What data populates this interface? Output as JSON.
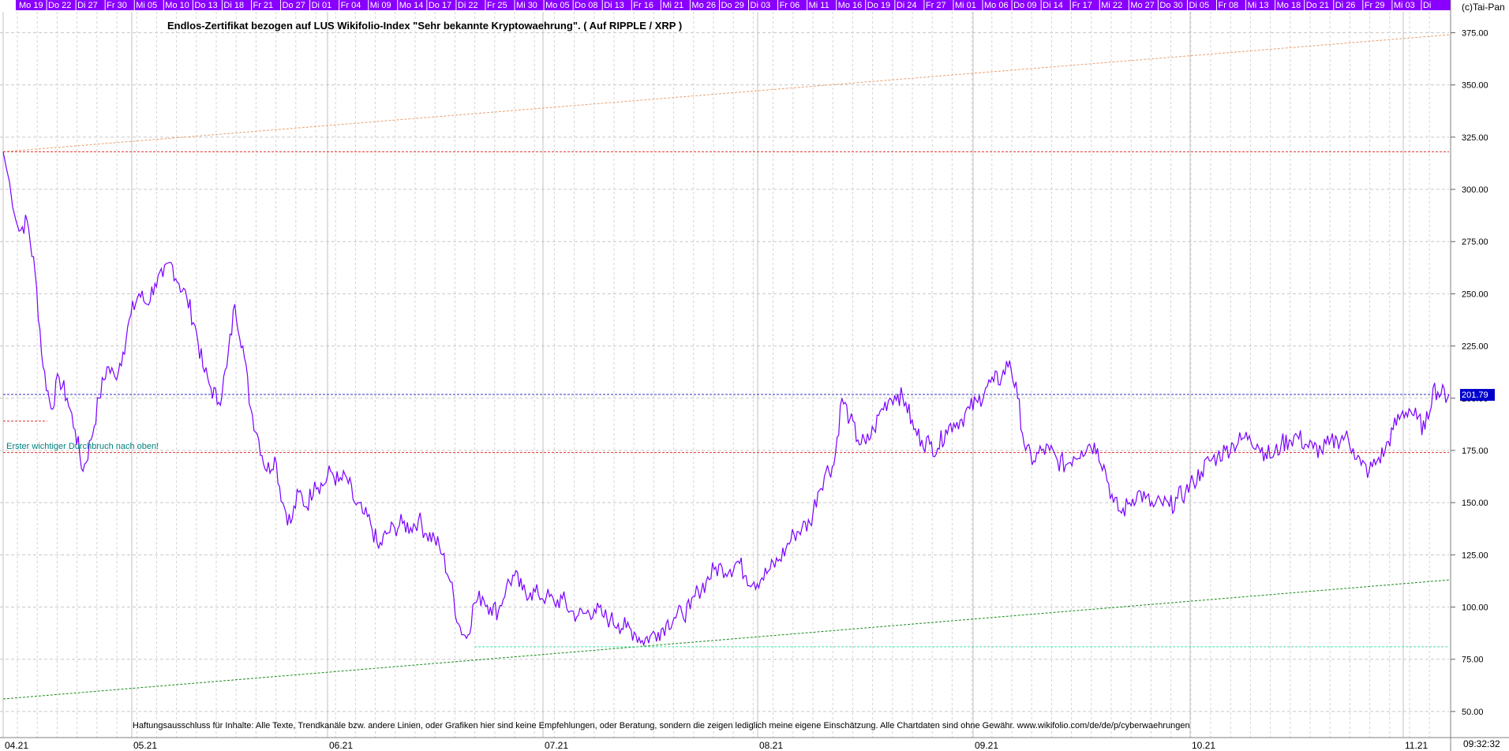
{
  "chart_data": {
    "type": "line",
    "title": "Endlos-Zertifikat bezogen auf LUS Wikifolio-Index \"Sehr bekannte Kryptowaehrung\". ( Auf RIPPLE / XRP )",
    "copyright": "(c)Tai-Pan",
    "disclaimer": "Haftungsausschluss für Inhalte: Alle Texte, Trendkanäle bzw. andere Linien, oder Grafiken hier sind keine Empfehlungen, oder Beratung, sondern die zeigen lediglich meine eigene Einschätzung. Alle Chartdaten sind ohne Gewähr.  www.wikifolio.com/de/de/p/cyberwaehrungen",
    "annotation": "Erster wichtiger Durchbruch nach oben!",
    "time_label": "09:32:32",
    "last_value": 201.79,
    "last_value_label": "201.79",
    "ylim": [
      37.5,
      385
    ],
    "y_ticks": [
      "50.00",
      "75.00",
      "100.00",
      "125.00",
      "150.00",
      "175.00",
      "200.00",
      "225.00",
      "250.00",
      "275.00",
      "300.00",
      "325.00",
      "350.00",
      "375.00"
    ],
    "y_tick_values": [
      50,
      75,
      100,
      125,
      150,
      175,
      200,
      225,
      250,
      275,
      300,
      325,
      350,
      375
    ],
    "top_dates": [
      "Mo 19",
      "Do 22",
      "Di 27",
      "Fr 30",
      "Mi 05",
      "Mo 10",
      "Do 13",
      "Di 18",
      "Fr 21",
      "Do 27",
      "Di 01",
      "Fr 04",
      "Mi 09",
      "Mo 14",
      "Do 17",
      "Di 22",
      "Fr 25",
      "Mi 30",
      "Mo 05",
      "Do 08",
      "Di 13",
      "Fr 16",
      "Mi 21",
      "Mo 26",
      "Do 29",
      "Di 03",
      "Fr 06",
      "Mi 11",
      "Mo 16",
      "Do 19",
      "Di 24",
      "Fr 27",
      "Mi 01",
      "Mo 06",
      "Do 09",
      "Di 14",
      "Fr 17",
      "Mi 22",
      "Mo 27",
      "Do 30",
      "Di 05",
      "Fr 08",
      "Mi 13",
      "Mo 18",
      "Do 21",
      "Di 26",
      "Fr 29",
      "Mi 03",
      "Di"
    ],
    "months": [
      "04.21",
      "05.21",
      "06.21",
      "07.21",
      "08.21",
      "09.21",
      "10.21",
      "11.21"
    ],
    "x_trading_days": 160,
    "month_index": [
      0,
      22,
      42,
      65,
      87,
      109,
      131,
      153
    ],
    "series": [
      {
        "color": "#7a00ff",
        "points": [
          [
            0,
            318
          ],
          [
            2,
            280
          ],
          [
            3,
            285
          ],
          [
            4,
            260
          ],
          [
            5,
            215
          ],
          [
            6,
            195
          ],
          [
            7,
            210
          ],
          [
            8,
            200
          ],
          [
            9,
            185
          ],
          [
            10,
            165
          ],
          [
            11,
            180
          ],
          [
            12,
            200
          ],
          [
            13,
            215
          ],
          [
            14,
            210
          ],
          [
            15,
            222
          ],
          [
            16,
            240
          ],
          [
            17,
            250
          ],
          [
            18,
            245
          ],
          [
            19,
            255
          ],
          [
            20,
            258
          ],
          [
            21,
            265
          ],
          [
            22,
            255
          ],
          [
            23,
            248
          ],
          [
            24,
            235
          ],
          [
            25,
            215
          ],
          [
            26,
            205
          ],
          [
            27,
            198
          ],
          [
            28,
            215
          ],
          [
            29,
            245
          ],
          [
            30,
            225
          ],
          [
            31,
            195
          ],
          [
            32,
            180
          ],
          [
            33,
            165
          ],
          [
            34,
            172
          ],
          [
            35,
            150
          ],
          [
            36,
            140
          ],
          [
            37,
            155
          ],
          [
            38,
            148
          ],
          [
            39,
            160
          ],
          [
            40,
            158
          ],
          [
            41,
            165
          ],
          [
            42,
            160
          ],
          [
            43,
            162
          ],
          [
            44,
            150
          ],
          [
            45,
            145
          ],
          [
            46,
            140
          ],
          [
            47,
            128
          ],
          [
            48,
            135
          ],
          [
            49,
            138
          ],
          [
            50,
            140
          ],
          [
            51,
            138
          ],
          [
            52,
            142
          ],
          [
            53,
            135
          ],
          [
            54,
            133
          ],
          [
            55,
            125
          ],
          [
            56,
            112
          ],
          [
            57,
            92
          ],
          [
            58,
            85
          ],
          [
            59,
            102
          ],
          [
            60,
            105
          ],
          [
            61,
            100
          ],
          [
            62,
            98
          ],
          [
            63,
            110
          ],
          [
            64,
            115
          ],
          [
            65,
            108
          ],
          [
            66,
            107
          ],
          [
            67,
            106
          ],
          [
            68,
            105
          ],
          [
            69,
            102
          ],
          [
            70,
            104
          ],
          [
            71,
            98
          ],
          [
            72,
            96
          ],
          [
            73,
            97
          ],
          [
            74,
            99
          ],
          [
            75,
            96
          ],
          [
            76,
            94
          ],
          [
            77,
            92
          ],
          [
            78,
            90
          ],
          [
            79,
            88
          ],
          [
            80,
            84
          ],
          [
            81,
            86
          ],
          [
            82,
            88
          ],
          [
            83,
            92
          ],
          [
            84,
            95
          ],
          [
            85,
            97
          ],
          [
            86,
            99
          ],
          [
            87,
            108
          ],
          [
            88,
            112
          ],
          [
            89,
            118
          ],
          [
            90,
            119
          ],
          [
            91,
            118
          ],
          [
            92,
            122
          ],
          [
            93,
            115
          ],
          [
            94,
            112
          ],
          [
            95,
            114
          ],
          [
            96,
            118
          ],
          [
            97,
            122
          ],
          [
            98,
            128
          ],
          [
            99,
            135
          ],
          [
            100,
            138
          ],
          [
            101,
            140
          ],
          [
            102,
            155
          ],
          [
            103,
            165
          ],
          [
            104,
            168
          ],
          [
            105,
            200
          ],
          [
            106,
            190
          ],
          [
            107,
            180
          ],
          [
            108,
            178
          ],
          [
            109,
            185
          ],
          [
            110,
            195
          ],
          [
            111,
            200
          ],
          [
            112,
            202
          ],
          [
            113,
            198
          ],
          [
            114,
            185
          ],
          [
            115,
            180
          ],
          [
            116,
            178
          ],
          [
            117,
            176
          ],
          [
            118,
            185
          ],
          [
            119,
            188
          ],
          [
            120,
            190
          ],
          [
            121,
            195
          ],
          [
            122,
            198
          ],
          [
            123,
            205
          ],
          [
            124,
            208
          ],
          [
            125,
            210
          ],
          [
            126,
            218
          ],
          [
            127,
            200
          ],
          [
            128,
            175
          ],
          [
            129,
            170
          ],
          [
            130,
            175
          ],
          [
            131,
            175
          ],
          [
            132,
            170
          ],
          [
            133,
            168
          ],
          [
            134,
            172
          ],
          [
            135,
            175
          ],
          [
            136,
            178
          ],
          [
            137,
            176
          ],
          [
            138,
            165
          ],
          [
            139,
            150
          ],
          [
            140,
            145
          ],
          [
            141,
            150
          ],
          [
            142,
            155
          ],
          [
            143,
            152
          ],
          [
            144,
            148
          ],
          [
            145,
            150
          ],
          [
            146,
            148
          ],
          [
            147,
            152
          ],
          [
            148,
            155
          ],
          [
            149,
            160
          ],
          [
            150,
            165
          ],
          [
            151,
            170
          ],
          [
            152,
            172
          ],
          [
            153,
            175
          ],
          [
            154,
            178
          ],
          [
            155,
            180
          ],
          [
            156,
            182
          ],
          [
            157,
            178
          ],
          [
            158,
            174
          ],
          [
            159,
            172
          ],
          [
            160,
            178
          ],
          [
            161,
            180
          ],
          [
            162,
            182
          ],
          [
            163,
            178
          ],
          [
            164,
            176
          ],
          [
            165,
            175
          ],
          [
            166,
            178
          ],
          [
            167,
            180
          ],
          [
            168,
            182
          ],
          [
            169,
            176
          ],
          [
            170,
            168
          ],
          [
            171,
            165
          ],
          [
            172,
            170
          ],
          [
            173,
            175
          ],
          [
            174,
            185
          ],
          [
            175,
            192
          ],
          [
            176,
            195
          ],
          [
            177,
            190
          ],
          [
            178,
            185
          ],
          [
            179,
            205
          ],
          [
            180,
            202
          ],
          [
            181,
            201.79
          ]
        ]
      }
    ],
    "lines": [
      {
        "kind": "trend",
        "color": "#e8a070",
        "from": [
          0,
          318
        ],
        "to": [
          181,
          374
        ]
      },
      {
        "kind": "trend",
        "color": "#1a8a1a",
        "from": [
          0,
          56
        ],
        "to": [
          181,
          113
        ]
      },
      {
        "kind": "horizontal",
        "color": "#e03030",
        "from": [
          0,
          318
        ],
        "to": [
          181,
          318
        ]
      },
      {
        "kind": "horizontal",
        "color": "#e03030",
        "from": [
          0,
          174
        ],
        "to": [
          181,
          174
        ]
      },
      {
        "kind": "horizontal",
        "color": "#e03030",
        "from": [
          0,
          189
        ],
        "to": [
          5.5,
          189
        ]
      },
      {
        "kind": "horizontal",
        "color": "#3030c0",
        "from": [
          0,
          201.79
        ],
        "to": [
          181,
          201.79
        ]
      },
      {
        "kind": "horizontal",
        "color": "#40e0a0",
        "from": [
          59,
          81
        ],
        "to": [
          181,
          81
        ]
      }
    ]
  }
}
